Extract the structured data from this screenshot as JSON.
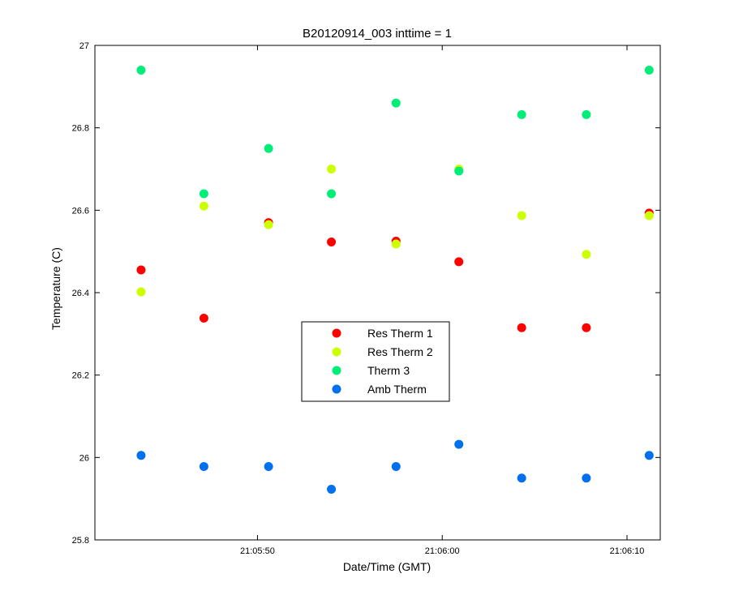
{
  "chart_data": {
    "type": "scatter",
    "title": "B20120914_003 inttime = 1",
    "xlabel": "Date/Time (GMT)",
    "ylabel": "Temperature (C)",
    "x_type": "time",
    "xlim": [
      "21:05:41.2",
      "21:06:11.8"
    ],
    "ylim": [
      25.8,
      27
    ],
    "x_ticks": [
      "21:05:50",
      "21:06:00",
      "21:06:10"
    ],
    "y_ticks": [
      "25.8",
      "26",
      "26.2",
      "26.4",
      "26.6",
      "26.8",
      "27"
    ],
    "grid": false,
    "legend_position": "center",
    "x": [
      "21:05:43.7",
      "21:05:47.1",
      "21:05:50.6",
      "21:05:54.0",
      "21:05:57.5",
      "21:06:00.9",
      "21:06:04.3",
      "21:06:07.8",
      "21:06:11.2"
    ],
    "series": [
      {
        "name": "Res Therm 1",
        "color": "#ff0000",
        "values": [
          26.455,
          26.338,
          26.57,
          26.523,
          26.525,
          26.475,
          26.315,
          26.315,
          26.593
        ]
      },
      {
        "name": "Res Therm 2",
        "color": "#ccff00",
        "values": [
          26.402,
          26.61,
          26.565,
          26.7,
          26.518,
          26.7,
          26.587,
          26.493,
          26.587
        ]
      },
      {
        "name": "Therm 3",
        "color": "#00ee77",
        "values": [
          26.94,
          26.64,
          26.75,
          26.64,
          26.86,
          26.695,
          26.832,
          26.832,
          26.94
        ]
      },
      {
        "name": "Amb Therm",
        "color": "#0070ee",
        "values": [
          26.005,
          25.978,
          25.978,
          25.923,
          25.978,
          26.032,
          25.95,
          25.95,
          26.005
        ]
      }
    ]
  }
}
